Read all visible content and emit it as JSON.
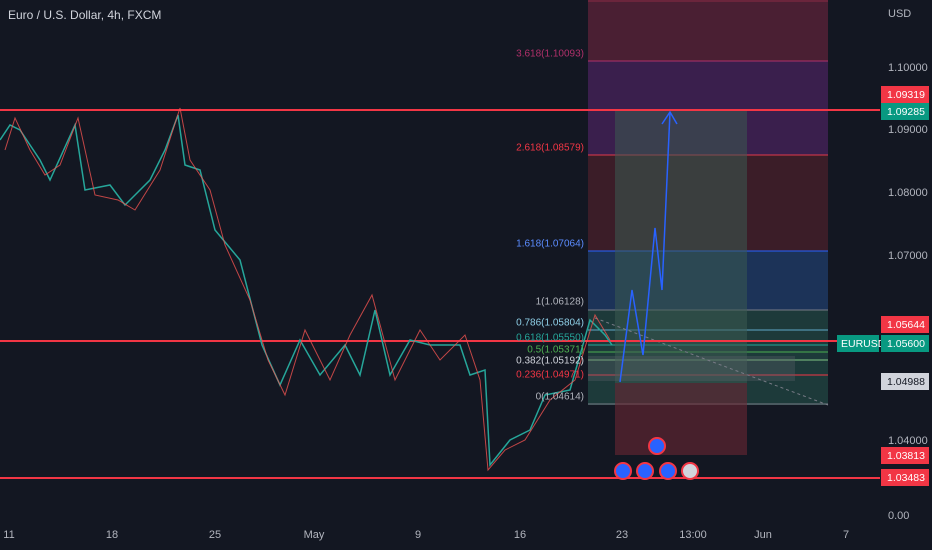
{
  "header": {
    "title": "Euro / U.S. Dollar, 4h, FXCM",
    "currency": "USD"
  },
  "price_axis": {
    "ticks": [
      "1.10000",
      "1.09000",
      "1.08000",
      "1.07000",
      "1.04000",
      "0.00"
    ],
    "tags": {
      "resistance": "1.09319",
      "target": "1.09285",
      "pair": "EURUSD",
      "level_mid": "1.05644",
      "current": "1.05600",
      "entry": "1.04988",
      "support_a": "1.03813",
      "support_b": "1.03483"
    }
  },
  "time_axis": [
    "11",
    "18",
    "25",
    "May",
    "9",
    "16",
    "23",
    "13:00",
    "Jun",
    "7"
  ],
  "fib_labels": [
    "3.618(1.10093)",
    "2.618(1.08579)",
    "1.618(1.07064)",
    "1(1.06128)",
    "0.786(1.05804)",
    "0.618(1.05550)",
    "0.5(1.05371)",
    "0.382(1.05192)",
    "0.236(1.04971)",
    "0(1.04614)"
  ]
}
